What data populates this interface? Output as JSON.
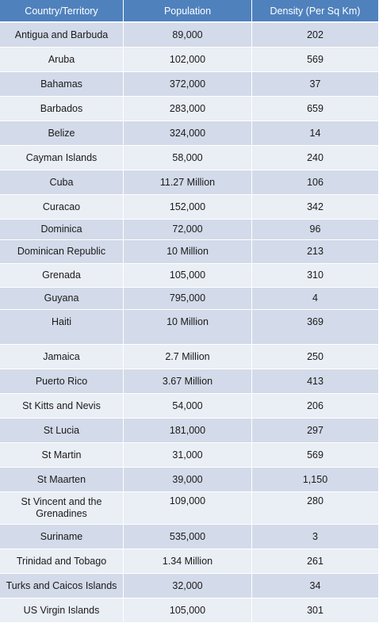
{
  "table": {
    "headers": [
      "Country/Territory",
      "Population",
      "Density (Per Sq Km)"
    ],
    "rows": [
      {
        "country": "Antigua and Barbuda",
        "population": "89,000",
        "density": "202"
      },
      {
        "country": "Aruba",
        "population": "102,000",
        "density": "569"
      },
      {
        "country": "Bahamas",
        "population": "372,000",
        "density": "37"
      },
      {
        "country": "Barbados",
        "population": "283,000",
        "density": "659"
      },
      {
        "country": "Belize",
        "population": "324,000",
        "density": "14"
      },
      {
        "country": "Cayman Islands",
        "population": "58,000",
        "density": "240"
      },
      {
        "country": "Cuba",
        "population": "11.27 Million",
        "density": "106"
      },
      {
        "country": "Curacao",
        "population": "152,000",
        "density": "342"
      },
      {
        "country": "Dominica",
        "population": "72,000",
        "density": "96"
      },
      {
        "country": "Dominican Republic",
        "population": "10 Million",
        "density": "213"
      },
      {
        "country": "Grenada",
        "population": "105,000",
        "density": "310"
      },
      {
        "country": "Guyana",
        "population": "795,000",
        "density": "4"
      },
      {
        "country": "Haiti",
        "population": "10 Million",
        "density": "369"
      },
      {
        "country": "Jamaica",
        "population": "2.7 Million",
        "density": "250"
      },
      {
        "country": "Puerto Rico",
        "population": "3.67 Million",
        "density": "413"
      },
      {
        "country": "St Kitts and Nevis",
        "population": "54,000",
        "density": "206"
      },
      {
        "country": "St Lucia",
        "population": "181,000",
        "density": "297"
      },
      {
        "country": "St Martin",
        "population": "31,000",
        "density": "569"
      },
      {
        "country": "St Maarten",
        "population": "39,000",
        "density": "1,150"
      },
      {
        "country": "St Vincent and the",
        "country_line2": "Grenadines",
        "population": "109,000",
        "density": "280"
      },
      {
        "country": "Suriname",
        "population": "535,000",
        "density": "3"
      },
      {
        "country": "Trinidad and Tobago",
        "population": "1.34 Million",
        "density": "261"
      },
      {
        "country": "Turks and Caicos Islands",
        "population": "32,000",
        "density": "34"
      },
      {
        "country": "US Virgin Islands",
        "population": "105,000",
        "density": "301"
      }
    ]
  }
}
